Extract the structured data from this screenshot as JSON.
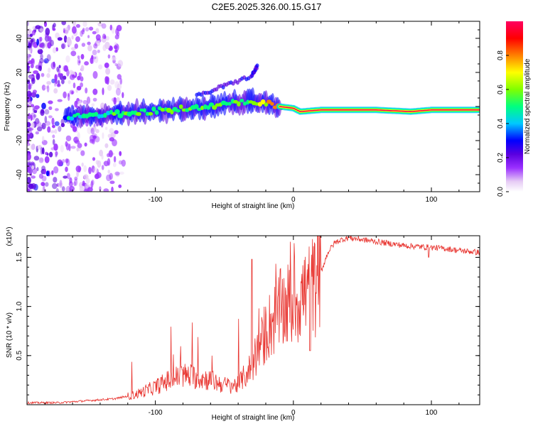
{
  "page_title": "C2E5.2025.326.00.15.G17",
  "colors": {
    "snr_line": "#e8332e",
    "frame": "#000000",
    "colormap": [
      "#ffffff",
      "#e6ccf5",
      "#9b30ff",
      "#5a00e0",
      "#0000ff",
      "#00c8ff",
      "#00ff80",
      "#80ff00",
      "#ffff00",
      "#ff8000",
      "#ff0000",
      "#ff0060"
    ]
  },
  "chart_data": [
    {
      "type": "heatmap",
      "title": "",
      "xlabel": "Height of straight line (km)",
      "ylabel": "Frequency (Hz)",
      "xlim": [
        -193,
        135
      ],
      "ylim": [
        -50,
        50
      ],
      "xticks": [
        -100,
        0,
        100
      ],
      "yticks": [
        -40,
        -20,
        0,
        20,
        40
      ],
      "colorbar": {
        "label": "Normalized spectral amplitude",
        "range": [
          0,
          1
        ],
        "ticks": [
          "0.0",
          "0.2",
          "0.4",
          "0.6",
          "0.8"
        ]
      },
      "ridge": [
        {
          "x": -165,
          "f": -6,
          "a": 0.35
        },
        {
          "x": -150,
          "f": -5,
          "a": 0.42
        },
        {
          "x": -135,
          "f": -5,
          "a": 0.45
        },
        {
          "x": -120,
          "f": -4,
          "a": 0.48
        },
        {
          "x": -105,
          "f": -3,
          "a": 0.5
        },
        {
          "x": -90,
          "f": -2,
          "a": 0.52
        },
        {
          "x": -75,
          "f": -1,
          "a": 0.5
        },
        {
          "x": -60,
          "f": 0,
          "a": 0.48
        },
        {
          "x": -45,
          "f": 2,
          "a": 0.5
        },
        {
          "x": -30,
          "f": 3,
          "a": 0.55
        },
        {
          "x": -20,
          "f": 2,
          "a": 0.6
        },
        {
          "x": -10,
          "f": 0,
          "a": 0.85
        },
        {
          "x": 0,
          "f": -1,
          "a": 0.95
        },
        {
          "x": 5,
          "f": -3,
          "a": 0.9
        },
        {
          "x": 20,
          "f": -2,
          "a": 1.0
        },
        {
          "x": 60,
          "f": -2,
          "a": 1.0
        },
        {
          "x": 85,
          "f": -3,
          "a": 0.85
        },
        {
          "x": 100,
          "f": -2,
          "a": 1.0
        },
        {
          "x": 135,
          "f": -2,
          "a": 1.0
        }
      ],
      "upper_branch": [
        {
          "x": -70,
          "f": 6
        },
        {
          "x": -50,
          "f": 12
        },
        {
          "x": -30,
          "f": 18
        },
        {
          "x": -26,
          "f": 24
        }
      ]
    },
    {
      "type": "line",
      "title": "",
      "xlabel": "Height of straight line (km)",
      "ylabel": "SNR (10 * v/v)",
      "y_multiplier": "(x10⁴)",
      "xlim": [
        -193,
        135
      ],
      "ylim": [
        0,
        1.72
      ],
      "xticks": [
        -100,
        0,
        100
      ],
      "yticks": [
        0.5,
        1.0,
        1.5
      ],
      "series": [
        {
          "name": "SNR",
          "x": [
            -193,
            -170,
            -150,
            -130,
            -115,
            -100,
            -90,
            -80,
            -70,
            -60,
            -50,
            -40,
            -30,
            -25,
            -20,
            -15,
            -10,
            -5,
            0,
            5,
            10,
            15,
            20,
            25,
            30,
            35,
            40,
            50,
            60,
            70,
            80,
            90,
            100,
            110,
            120,
            135
          ],
          "y": [
            0.02,
            0.02,
            0.04,
            0.06,
            0.1,
            0.18,
            0.25,
            0.3,
            0.28,
            0.25,
            0.2,
            0.2,
            0.4,
            0.55,
            0.75,
            0.85,
            0.95,
            1.0,
            1.05,
            1.1,
            1.15,
            1.2,
            1.35,
            1.55,
            1.65,
            1.68,
            1.7,
            1.68,
            1.66,
            1.64,
            1.62,
            1.61,
            1.6,
            1.59,
            1.57,
            1.55
          ]
        }
      ]
    }
  ]
}
